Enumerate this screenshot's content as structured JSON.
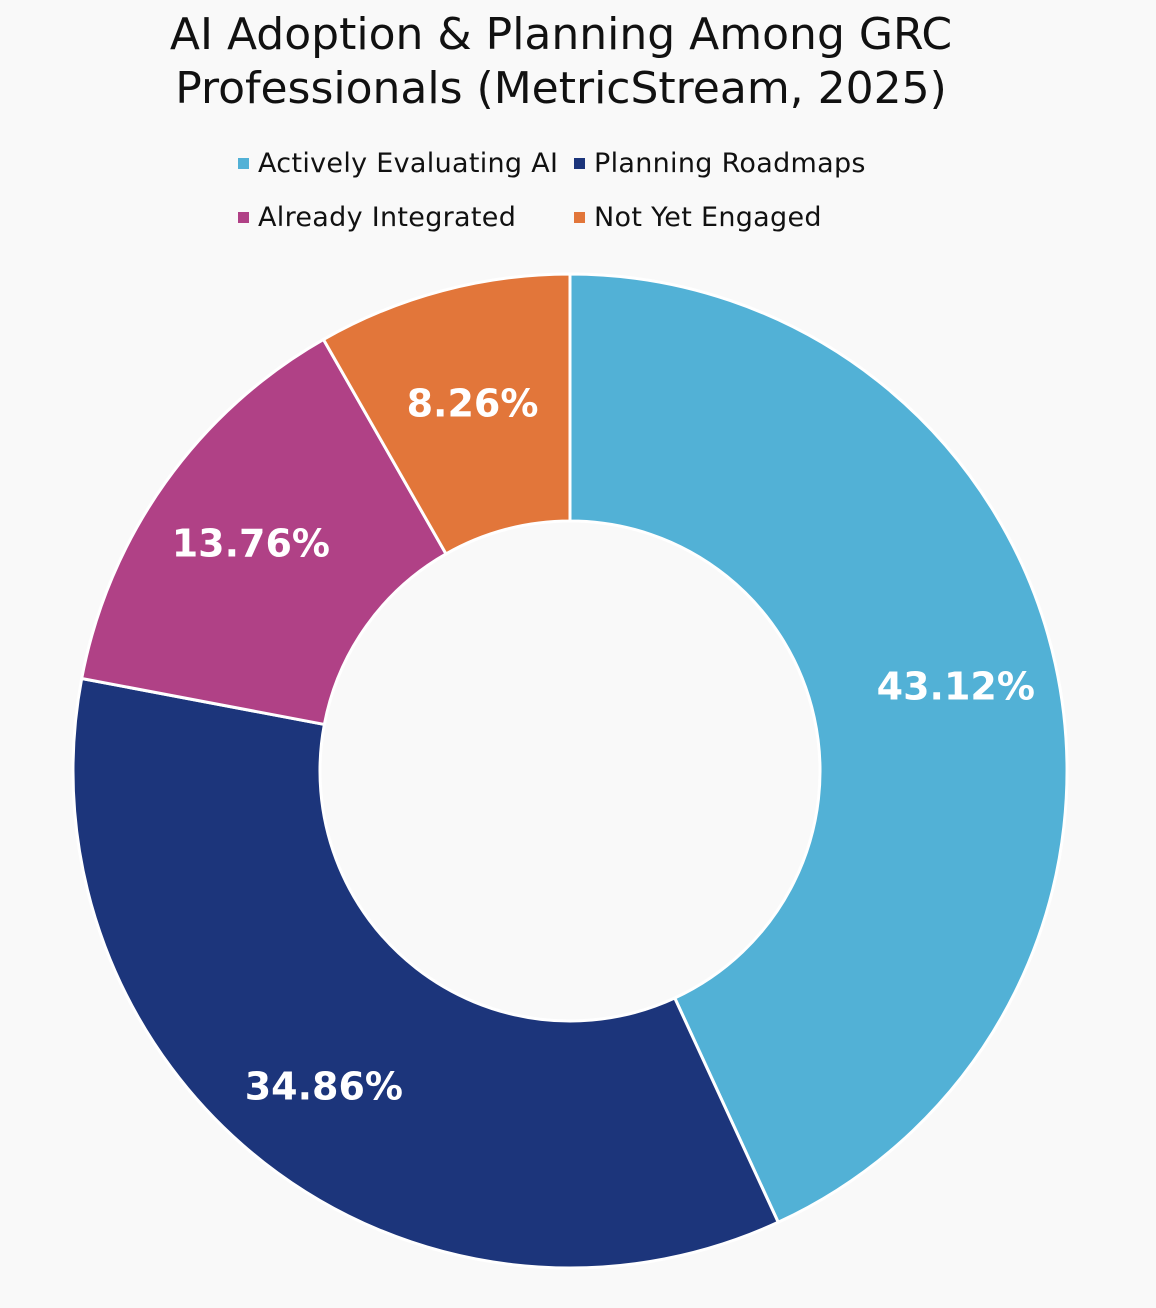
{
  "chart_data": {
    "type": "pie",
    "variant": "donut",
    "title_line1": "AI Adoption & Planning Among GRC",
    "title_line2": "Professionals (MetricStream, 2025)",
    "categories": [
      "Actively Evaluating AI",
      "Planning Roadmaps",
      "Already Integrated",
      "Not Yet Engaged"
    ],
    "values": [
      43.12,
      34.86,
      13.76,
      8.26
    ],
    "labels": [
      "43.12%",
      "34.86%",
      "13.76%",
      "8.26%"
    ],
    "colors": [
      "#52b1d6",
      "#1c357b",
      "#b04186",
      "#e2763a"
    ],
    "legend_position": "top",
    "start_angle": "12 o'clock",
    "direction": "clockwise"
  }
}
